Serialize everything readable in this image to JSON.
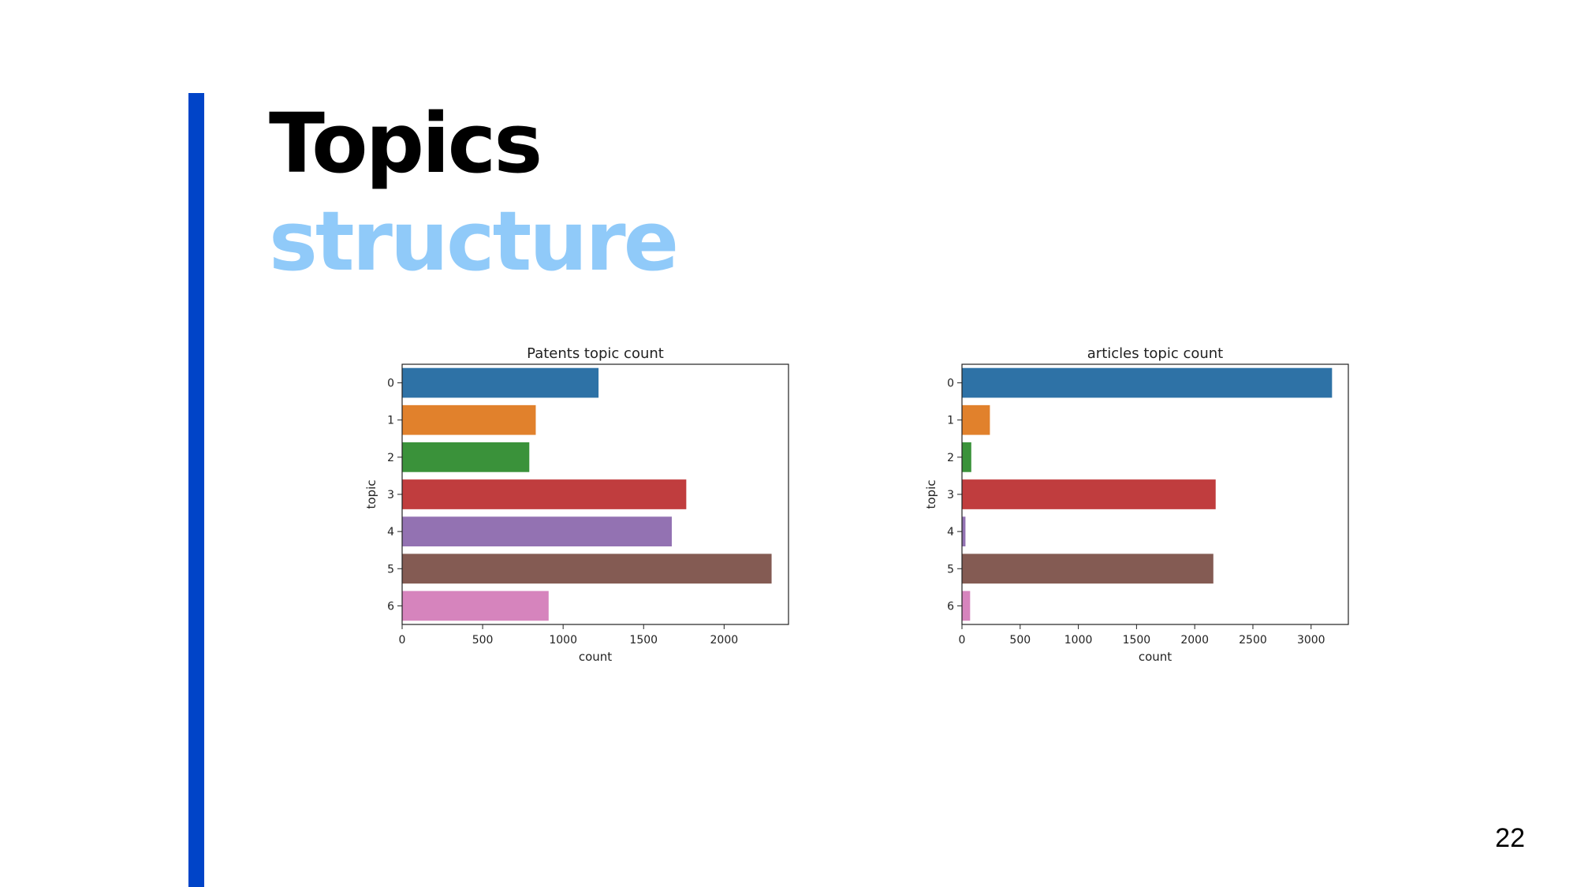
{
  "slide": {
    "title": "Topics",
    "subtitle": "structure",
    "page_number": "22",
    "colors": {
      "accent_bar": "#0044c8",
      "subtitle": "#90caf9"
    }
  },
  "chart_data": [
    {
      "type": "bar",
      "orientation": "horizontal",
      "title": "Patents topic count",
      "xlabel": "count",
      "ylabel": "topic",
      "categories": [
        "0",
        "1",
        "2",
        "3",
        "4",
        "5",
        "6"
      ],
      "values": [
        1220,
        830,
        790,
        1765,
        1675,
        2295,
        910
      ],
      "xlim": [
        0,
        2400
      ],
      "xticks": [
        0,
        500,
        1000,
        1500,
        2000
      ],
      "colors": [
        "#2e72a6",
        "#e1812c",
        "#3a923a",
        "#c03d3e",
        "#9372b2",
        "#845b53",
        "#d684bd"
      ],
      "grid": false,
      "legend": "none"
    },
    {
      "type": "bar",
      "orientation": "horizontal",
      "title": "articles topic count",
      "xlabel": "count",
      "ylabel": "topic",
      "categories": [
        "0",
        "1",
        "2",
        "3",
        "4",
        "5",
        "6"
      ],
      "values": [
        3180,
        240,
        80,
        2180,
        30,
        2160,
        70
      ],
      "xlim": [
        0,
        3320
      ],
      "xticks": [
        0,
        500,
        1000,
        1500,
        2000,
        2500,
        3000
      ],
      "colors": [
        "#2e72a6",
        "#e1812c",
        "#3a923a",
        "#c03d3e",
        "#9372b2",
        "#845b53",
        "#d684bd"
      ],
      "grid": false,
      "legend": "none"
    }
  ]
}
